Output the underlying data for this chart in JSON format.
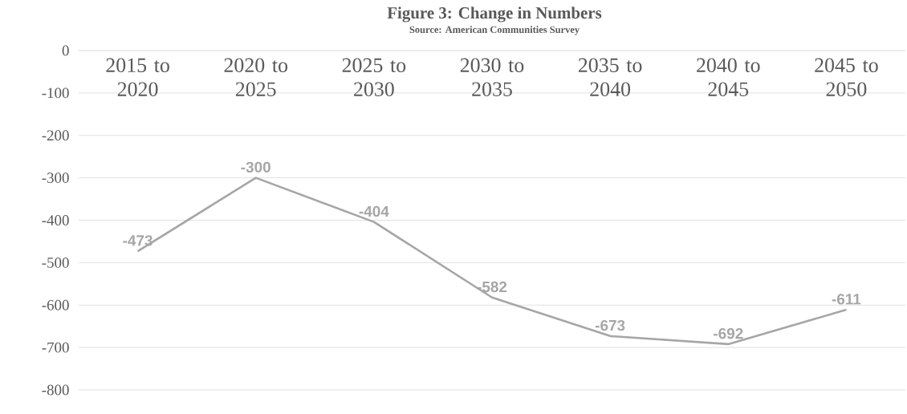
{
  "chart_data": {
    "type": "line",
    "title": "Figure 3: Change in Numbers",
    "subtitle": "Source: American Communities Survey",
    "categories": [
      "2015 to 2020",
      "2020 to 2025",
      "2025 to 2030",
      "2030 to 2035",
      "2035 to 2040",
      "2040 to 2045",
      "2045 to 2050"
    ],
    "values": [
      -473,
      -300,
      -404,
      -582,
      -673,
      -692,
      -611
    ],
    "color": "#a6a6a6",
    "ylim": [
      -800,
      0
    ],
    "yticks": [
      0,
      -100,
      -200,
      -300,
      -400,
      -500,
      -600,
      -700,
      -800
    ],
    "grid": "y",
    "data_labels": true,
    "line_style": "solid"
  }
}
